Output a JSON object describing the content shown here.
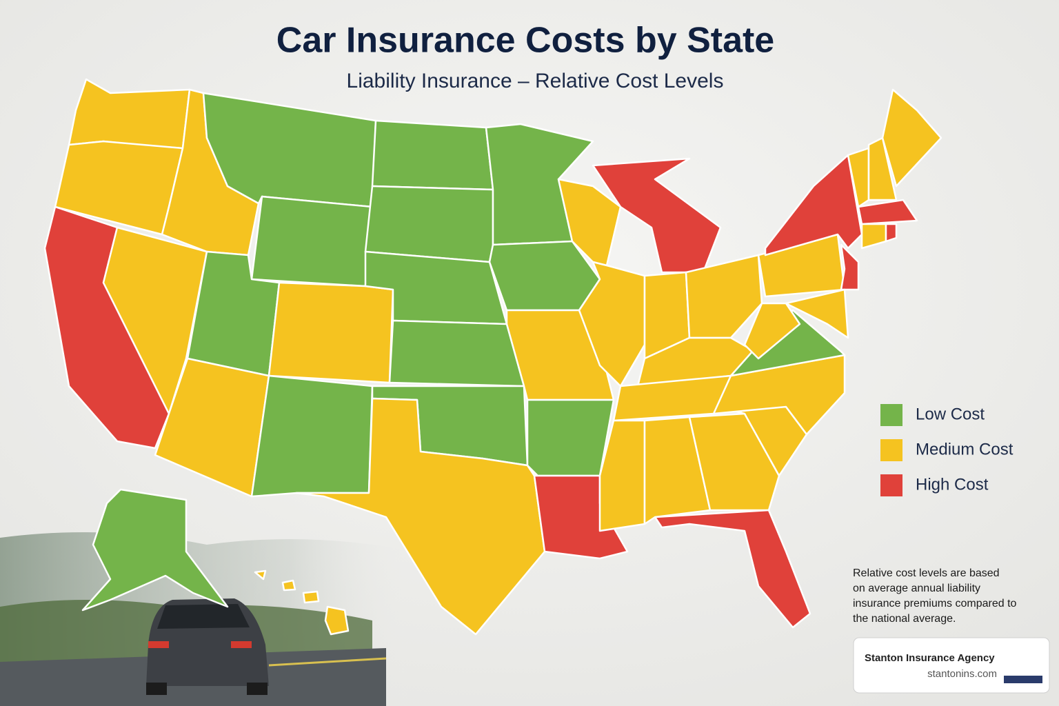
{
  "header": {
    "title": "Car Insurance Costs by State",
    "subtitle": "Liability Insurance – Relative Cost Levels"
  },
  "legend": [
    {
      "label": "Low Cost",
      "color": "#74b44a"
    },
    {
      "label": "Medium Cost",
      "color": "#f5c320"
    },
    {
      "label": "High Cost",
      "color": "#e0413a"
    }
  ],
  "note": "Relative cost levels are based on average annual liability insurance premiums compared to the national average.",
  "footer": {
    "agency": "Stanton Insurance Agency",
    "url": "stantonins.com"
  }
}
